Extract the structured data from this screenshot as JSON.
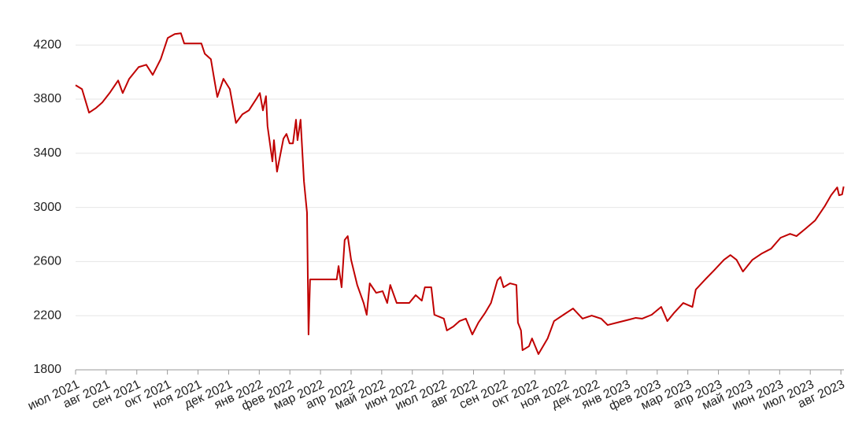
{
  "chart_data": {
    "type": "line",
    "color": "#c00000",
    "grid": true,
    "x": [
      0,
      0.21,
      0.44,
      0.67,
      0.87,
      1.13,
      1.39,
      1.54,
      1.75,
      2.06,
      2.31,
      2.52,
      2.78,
      3.01,
      3.24,
      3.44,
      3.55,
      3.8,
      4.11,
      4.22,
      4.42,
      4.52,
      4.63,
      4.83,
      5.04,
      5.24,
      5.45,
      5.66,
      5.91,
      6.02,
      6.12,
      6.22,
      6.27,
      6.43,
      6.48,
      6.58,
      6.79,
      6.89,
      6.99,
      7.1,
      7.2,
      7.25,
      7.35,
      7.46,
      7.51,
      7.56,
      7.61,
      7.66,
      8.53,
      8.59,
      8.69,
      8.79,
      8.89,
      9.0,
      9.2,
      9.41,
      9.51,
      9.61,
      9.82,
      10.03,
      10.18,
      10.28,
      10.49,
      10.9,
      11.11,
      11.31,
      11.41,
      11.62,
      11.72,
      12.03,
      12.13,
      12.34,
      12.54,
      12.75,
      12.96,
      13.16,
      13.37,
      13.57,
      13.78,
      13.88,
      13.98,
      14.19,
      14.4,
      14.45,
      14.55,
      14.6,
      14.81,
      14.91,
      15.12,
      15.42,
      15.63,
      15.94,
      16.25,
      16.56,
      16.86,
      17.17,
      17.38,
      17.69,
      18.1,
      18.3,
      18.51,
      18.82,
      19.13,
      19.33,
      19.54,
      19.85,
      20.15,
      20.26,
      20.57,
      20.87,
      21.18,
      21.39,
      21.59,
      21.8,
      22.11,
      22.42,
      22.72,
      23.03,
      23.34,
      23.55,
      23.86,
      24.16,
      24.47,
      24.68,
      24.88,
      24.94,
      25.04,
      25.09
    ],
    "values": [
      3903,
      3874,
      3700,
      3735,
      3775,
      3851,
      3938,
      3845,
      3950,
      4037,
      4054,
      3979,
      4095,
      4252,
      4281,
      4287,
      4211,
      4211,
      4211,
      4136,
      4095,
      3961,
      3816,
      3950,
      3874,
      3624,
      3688,
      3717,
      3804,
      3845,
      3717,
      3822,
      3601,
      3340,
      3497,
      3264,
      3508,
      3543,
      3473,
      3473,
      3648,
      3497,
      3648,
      3194,
      3078,
      2962,
      2061,
      2468,
      2468,
      2567,
      2410,
      2759,
      2788,
      2613,
      2427,
      2294,
      2207,
      2439,
      2369,
      2381,
      2294,
      2427,
      2294,
      2294,
      2352,
      2311,
      2410,
      2410,
      2207,
      2178,
      2091,
      2120,
      2160,
      2178,
      2061,
      2149,
      2218,
      2294,
      2462,
      2486,
      2410,
      2439,
      2427,
      2149,
      2091,
      1945,
      1974,
      2032,
      1916,
      2032,
      2160,
      2207,
      2253,
      2178,
      2201,
      2178,
      2131,
      2149,
      2172,
      2184,
      2178,
      2207,
      2265,
      2160,
      2218,
      2294,
      2265,
      2393,
      2468,
      2538,
      2613,
      2648,
      2613,
      2526,
      2613,
      2660,
      2695,
      2776,
      2805,
      2788,
      2846,
      2904,
      3008,
      3090,
      3148,
      3090,
      3096,
      3154
    ],
    "xlim": [
      0,
      25.1
    ],
    "ylim": [
      1800,
      4300
    ],
    "yticks": [
      1800,
      2200,
      2600,
      3000,
      3400,
      3800,
      4200
    ],
    "xticks": [
      {
        "value": 0,
        "label": "июл 2021"
      },
      {
        "value": 1,
        "label": "авг 2021"
      },
      {
        "value": 2,
        "label": "сен 2021"
      },
      {
        "value": 3,
        "label": "окт 2021"
      },
      {
        "value": 4,
        "label": "ноя 2021"
      },
      {
        "value": 5,
        "label": "дек 2021"
      },
      {
        "value": 6,
        "label": "янв 2022"
      },
      {
        "value": 7,
        "label": "фев 2022"
      },
      {
        "value": 8,
        "label": "мар 2022"
      },
      {
        "value": 9,
        "label": "апр 2022"
      },
      {
        "value": 10,
        "label": "май 2022"
      },
      {
        "value": 11,
        "label": "июн 2022"
      },
      {
        "value": 12,
        "label": "июл 2022"
      },
      {
        "value": 13,
        "label": "авг 2022"
      },
      {
        "value": 14,
        "label": "сен 2022"
      },
      {
        "value": 15,
        "label": "окт 2022"
      },
      {
        "value": 16,
        "label": "ноя 2022"
      },
      {
        "value": 17,
        "label": "дек 2022"
      },
      {
        "value": 18,
        "label": "янв 2023"
      },
      {
        "value": 19,
        "label": "фев 2023"
      },
      {
        "value": 20,
        "label": "мар 2023"
      },
      {
        "value": 21,
        "label": "апр 2023"
      },
      {
        "value": 22,
        "label": "май 2023"
      },
      {
        "value": 23,
        "label": "июн 2023"
      },
      {
        "value": 24,
        "label": "июл 2023"
      },
      {
        "value": 25,
        "label": "авг 2023"
      }
    ]
  }
}
